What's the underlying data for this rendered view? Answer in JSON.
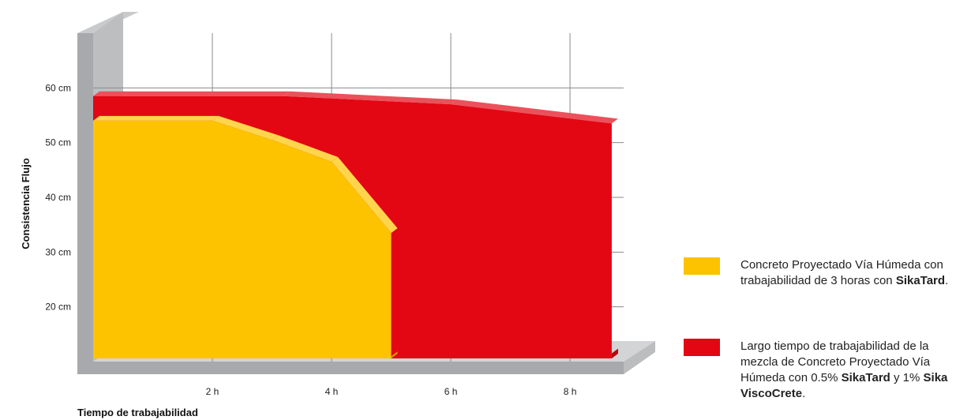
{
  "chart_data": {
    "type": "area",
    "ylabel": "Consistencia Flujo",
    "xlabel": "Tiempo de trabajabilidad",
    "x_ticks": [
      "2 h",
      "4 h",
      "6 h",
      "8 h"
    ],
    "y_ticks": [
      "20 cm",
      "30 cm",
      "40 cm",
      "50 cm",
      "60 cm"
    ],
    "xlim": [
      0,
      8.9
    ],
    "ylim": [
      10,
      70
    ],
    "grid": true,
    "legend_position": "right",
    "series": [
      {
        "color": "#e30613",
        "x": [
          0,
          3.2,
          6,
          8.7,
          8.7
        ],
        "y": [
          58.5,
          58.5,
          57,
          53.5,
          11.5
        ]
      },
      {
        "color": "#fdc300",
        "x": [
          0,
          2,
          3,
          4,
          5,
          5
        ],
        "y": [
          54,
          54,
          50.5,
          46.5,
          33.5,
          11
        ]
      }
    ]
  },
  "legend": {
    "items": [
      {
        "color": "#fdc300",
        "parts": [
          {
            "text": "Concreto Proyectado Vía Húmeda con trabajabilidad de 3 horas con ",
            "bold": false
          },
          {
            "text": "SikaTard",
            "bold": true
          },
          {
            "text": ".",
            "bold": false
          }
        ]
      },
      {
        "color": "#e30613",
        "parts": [
          {
            "text": "Largo tiempo de trabajabilidad de la mezcla de Concreto Proyectado Vía Húmeda con 0.5% ",
            "bold": false
          },
          {
            "text": "SikaTard",
            "bold": true
          },
          {
            "text": " y 1% ",
            "bold": false
          },
          {
            "text": "Sika ViscoCrete",
            "bold": true
          },
          {
            "text": ".",
            "bold": false
          }
        ]
      }
    ]
  }
}
